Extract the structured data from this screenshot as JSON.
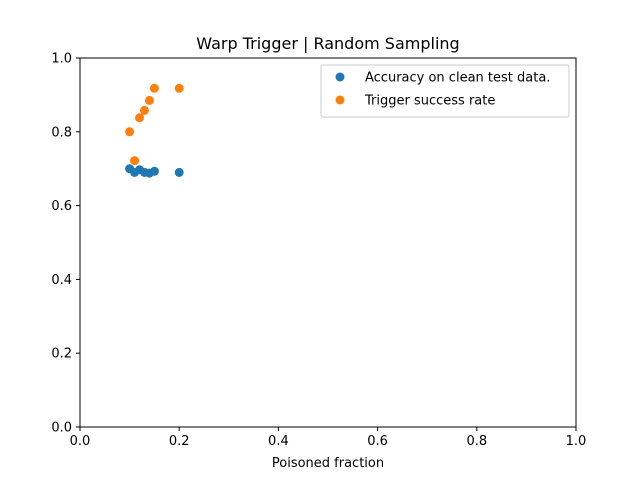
{
  "chart_data": {
    "type": "scatter",
    "title": "Warp Trigger | Random Sampling",
    "xlabel": "Poisoned fraction",
    "ylabel": "",
    "xlim": [
      0.0,
      1.0
    ],
    "ylim": [
      0.0,
      1.0
    ],
    "xticks": [
      "0.0",
      "0.2",
      "0.4",
      "0.6",
      "0.8",
      "1.0"
    ],
    "yticks": [
      "0.0",
      "0.2",
      "0.4",
      "0.6",
      "0.8",
      "1.0"
    ],
    "grid": false,
    "legend_position": "top-right",
    "series": [
      {
        "name": "Accuracy on clean test data.",
        "color": "#1f77b4",
        "x": [
          0.1,
          0.11,
          0.12,
          0.13,
          0.14,
          0.15,
          0.2
        ],
        "y": [
          0.7,
          0.69,
          0.697,
          0.69,
          0.688,
          0.693,
          0.69
        ]
      },
      {
        "name": "Trigger success rate",
        "color": "#ff7f0e",
        "x": [
          0.1,
          0.11,
          0.12,
          0.13,
          0.14,
          0.15,
          0.2
        ],
        "y": [
          0.8,
          0.722,
          0.838,
          0.858,
          0.885,
          0.918,
          0.918
        ]
      }
    ]
  }
}
